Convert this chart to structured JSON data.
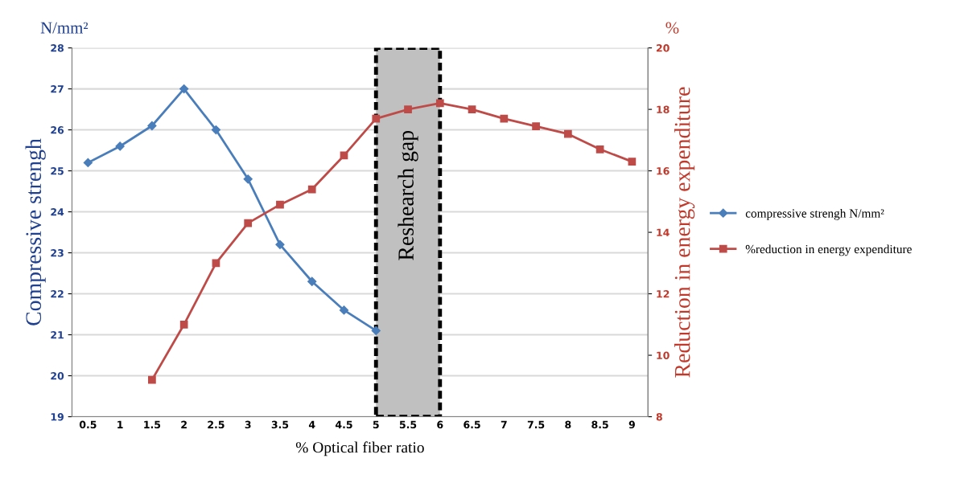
{
  "chart_data": {
    "type": "line",
    "xlabel": "% Optical fiber ratio",
    "ylabel": "Compressive strengh",
    "y2label": "Reduction in energy expenditure",
    "categories": [
      "0.5",
      "1",
      "1.5",
      "2",
      "2.5",
      "3",
      "3.5",
      "4",
      "4.5",
      "5",
      "5.5",
      "6",
      "6.5",
      "7",
      "7.5",
      "8",
      "8.5",
      "9"
    ],
    "series": [
      {
        "name": "compressive strengh N/mm²",
        "color": "#4a7ebb",
        "marker": "diamond",
        "values": [
          25.2,
          25.6,
          26.1,
          27.0,
          26.0,
          24.8,
          23.2,
          22.3,
          21.6,
          21.1,
          null,
          null,
          null,
          null,
          null,
          null,
          null,
          null
        ]
      },
      {
        "name": "%reduction in energy expenditure",
        "color": "#be4b48",
        "marker": "square",
        "axis": "y2",
        "values": [
          null,
          null,
          9.2,
          11.0,
          13.0,
          14.3,
          14.9,
          15.4,
          16.5,
          17.7,
          18.0,
          18.2,
          18.0,
          17.7,
          17.45,
          17.2,
          16.7,
          16.3
        ]
      }
    ],
    "ylim": [
      19,
      28
    ],
    "yticks": [
      19,
      20,
      21,
      22,
      23,
      24,
      25,
      26,
      27,
      28
    ],
    "y2lim": [
      8,
      20
    ],
    "y2ticks": [
      8,
      10,
      12,
      14,
      16,
      18,
      20
    ],
    "bands": [
      {
        "axis": "x",
        "from": "5",
        "to": "6",
        "label": "Reshearch gap",
        "color": "#c0c0c0"
      }
    ],
    "annotations": [
      "N/mm²",
      "%"
    ],
    "grid": "y",
    "legend": "right",
    "line_style": "solid"
  }
}
